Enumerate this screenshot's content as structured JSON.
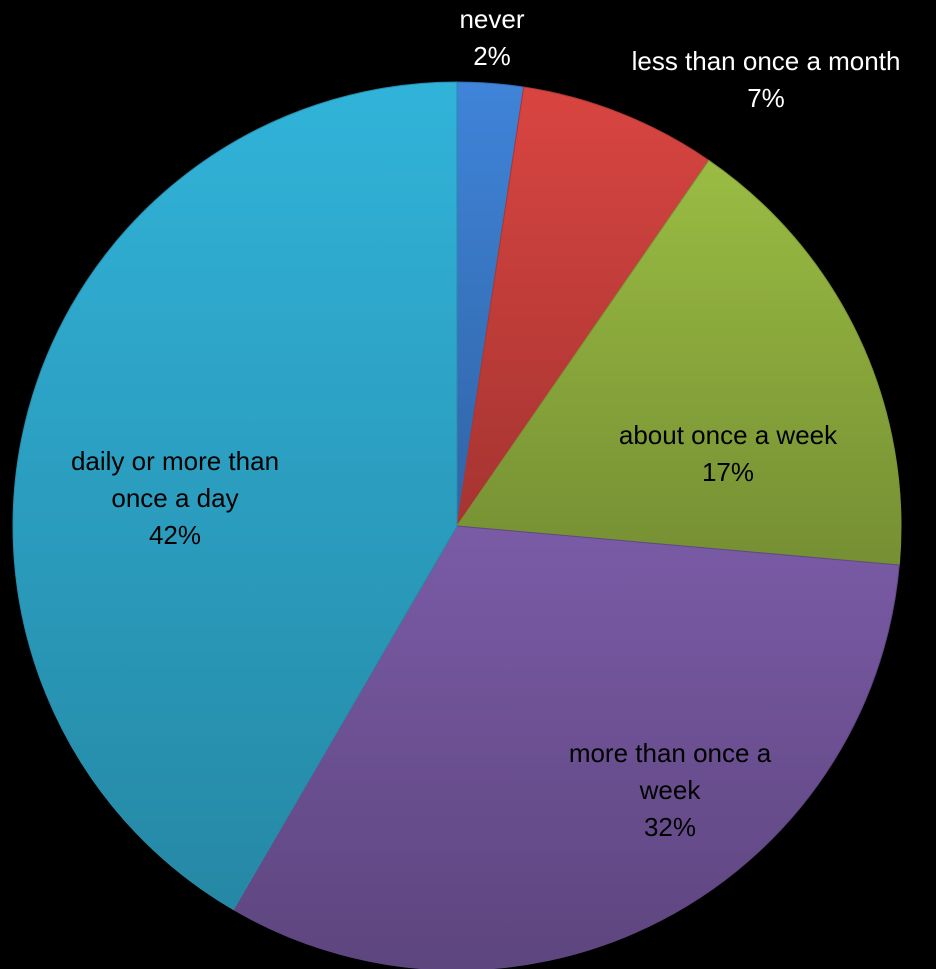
{
  "chart_data": {
    "type": "pie",
    "start_angle_deg": 0,
    "direction": "clockwise",
    "background": "#000000",
    "label_color_dark": "#000000",
    "label_color_light": "#ffffff",
    "slices": [
      {
        "label_lines": [
          "never"
        ],
        "percent_label": "2%",
        "value": 2.4,
        "color": "#3a7ac9",
        "label_position": "outside",
        "label_color": "#ffffff"
      },
      {
        "label_lines": [
          "less than once a month"
        ],
        "percent_label": "7%",
        "value": 7.2,
        "color": "#c9403c",
        "label_position": "outside",
        "label_color": "#ffffff"
      },
      {
        "label_lines": [
          "about once a week"
        ],
        "percent_label": "17%",
        "value": 16.8,
        "color": "#8fae3e",
        "label_position": "inside",
        "label_color": "#000000"
      },
      {
        "label_lines": [
          "more than once a",
          "week"
        ],
        "percent_label": "32%",
        "value": 32.0,
        "color": "#71549a",
        "label_position": "inside",
        "label_color": "#000000"
      },
      {
        "label_lines": [
          "daily or more than",
          "once a day"
        ],
        "percent_label": "42%",
        "value": 41.6,
        "color": "#2da6c9",
        "label_position": "inside",
        "label_color": "#000000"
      }
    ]
  }
}
